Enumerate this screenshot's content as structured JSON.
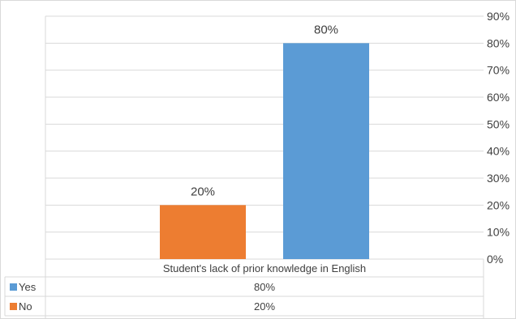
{
  "chart_data": {
    "type": "bar",
    "categories": [
      "Student's lack of prior knowledge in English"
    ],
    "series": [
      {
        "name": "No",
        "values": [
          20
        ],
        "color": "#ED7D31",
        "data_labels": [
          "20%"
        ],
        "table_value": "20%"
      },
      {
        "name": "Yes",
        "values": [
          80
        ],
        "color": "#5B9BD5",
        "data_labels": [
          "80%"
        ],
        "table_value": "80%"
      }
    ],
    "y_ticks": [
      "0%",
      "10%",
      "20%",
      "30%",
      "40%",
      "50%",
      "60%",
      "70%",
      "80%",
      "90%"
    ],
    "ylim": [
      0,
      90
    ],
    "y_axis_side": "right",
    "grid": true,
    "legend": "data-table-below",
    "data_table": [
      {
        "label": "Yes",
        "value": "80%"
      },
      {
        "label": "No",
        "value": "20%"
      }
    ]
  }
}
